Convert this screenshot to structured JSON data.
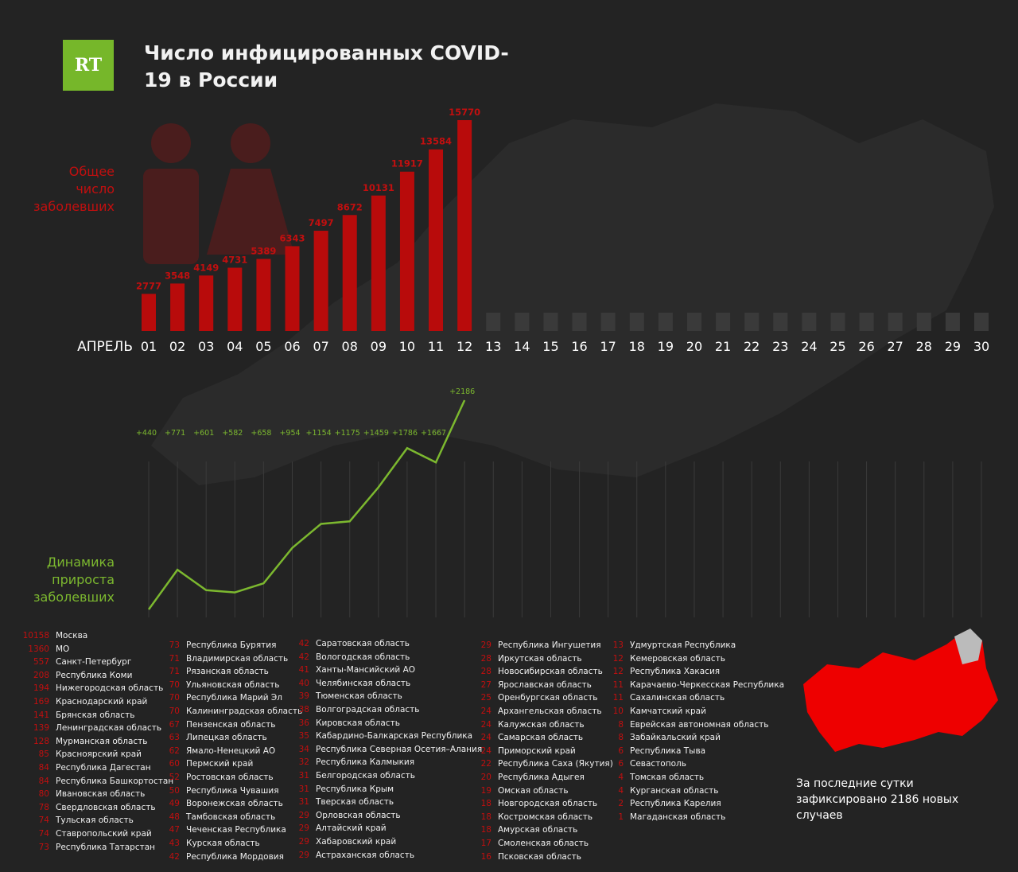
{
  "header": {
    "logo": "RT",
    "title": "Число инфицированных COVID-19 в России"
  },
  "chart_data": [
    {
      "type": "bar",
      "xlabel": "АПРЕЛЬ",
      "ylabel": "Общее число заболевших",
      "color": "#b80b0b",
      "placeholder_color": "#3a3a3a",
      "categories": [
        "01",
        "02",
        "03",
        "04",
        "05",
        "06",
        "07",
        "08",
        "09",
        "10",
        "11",
        "12",
        "13",
        "14",
        "15",
        "16",
        "17",
        "18",
        "19",
        "20",
        "21",
        "22",
        "23",
        "24",
        "25",
        "26",
        "27",
        "28",
        "29",
        "30"
      ],
      "values": [
        2777,
        3548,
        4149,
        4731,
        5389,
        6343,
        7497,
        8672,
        10131,
        11917,
        13584,
        15770,
        null,
        null,
        null,
        null,
        null,
        null,
        null,
        null,
        null,
        null,
        null,
        null,
        null,
        null,
        null,
        null,
        null,
        null
      ]
    },
    {
      "type": "line",
      "ylabel": "Динамика прироста заболевших",
      "color": "#7cb82f",
      "grid": true,
      "values": [
        440,
        771,
        601,
        582,
        658,
        954,
        1154,
        1175,
        1459,
        1786,
        1667,
        2186
      ],
      "value_labels": [
        "+440",
        "+771",
        "+601",
        "+582",
        "+658",
        "+954",
        "+1154",
        "+1175",
        "+1459",
        "+1786",
        "+1667",
        "+2186"
      ]
    }
  ],
  "regions": [
    [
      [
        "10158",
        "Москва"
      ],
      [
        "1360",
        "МО"
      ],
      [
        "557",
        "Санкт-Петербург"
      ],
      [
        "208",
        "Республика Коми"
      ],
      [
        "194",
        "Нижегородская область"
      ],
      [
        "169",
        "Краснодарский край"
      ],
      [
        "141",
        "Брянская область"
      ],
      [
        "139",
        "Ленинградская область"
      ],
      [
        "128",
        "Мурманская область"
      ],
      [
        "85",
        "Красноярский край"
      ],
      [
        "84",
        "Республика Дагестан"
      ],
      [
        "84",
        "Республика Башкортостан"
      ],
      [
        "80",
        "Ивановская область"
      ],
      [
        "78",
        "Свердловская область"
      ],
      [
        "74",
        "Тульская область"
      ],
      [
        "74",
        "Ставропольский край"
      ],
      [
        "73",
        "Республика Татарстан"
      ]
    ],
    [
      [
        "73",
        "Республика Бурятия"
      ],
      [
        "71",
        "Владимирская область"
      ],
      [
        "71",
        "Рязанская область"
      ],
      [
        "70",
        "Ульяновская область"
      ],
      [
        "70",
        "Республика Марий Эл"
      ],
      [
        "70",
        "Калининградская область"
      ],
      [
        "67",
        "Пензенская область"
      ],
      [
        "63",
        "Липецкая область"
      ],
      [
        "62",
        "Ямало-Ненецкий АО"
      ],
      [
        "60",
        "Пермский край"
      ],
      [
        "52",
        "Ростовская область"
      ],
      [
        "50",
        "Республика Чувашия"
      ],
      [
        "49",
        "Воронежская область"
      ],
      [
        "48",
        "Тамбовская область"
      ],
      [
        "47",
        "Чеченская Республика"
      ],
      [
        "43",
        "Курская область"
      ],
      [
        "42",
        "Республика Мордовия"
      ]
    ],
    [
      [
        "42",
        "Саратовская область"
      ],
      [
        "42",
        "Вологодская область"
      ],
      [
        "41",
        "Ханты-Мансийский АО"
      ],
      [
        "40",
        "Челябинская область"
      ],
      [
        "39",
        "Тюменская область"
      ],
      [
        "38",
        "Волгоградская область"
      ],
      [
        "36",
        "Кировская область"
      ],
      [
        "35",
        "Кабардино-Балкарская Республика"
      ],
      [
        "34",
        "Республика Северная Осетия–Алания"
      ],
      [
        "32",
        "Республика Калмыкия"
      ],
      [
        "31",
        "Белгородская область"
      ],
      [
        "31",
        "Республика Крым"
      ],
      [
        "31",
        "Тверская область"
      ],
      [
        "29",
        "Орловская область"
      ],
      [
        "29",
        "Алтайский край"
      ],
      [
        "29",
        "Хабаровский край"
      ],
      [
        "29",
        "Астраханская область"
      ]
    ],
    [
      [
        "29",
        "Республика Ингушетия"
      ],
      [
        "28",
        "Иркутская область"
      ],
      [
        "28",
        "Новосибирская область"
      ],
      [
        "27",
        "Ярославская область"
      ],
      [
        "25",
        "Оренбургская область"
      ],
      [
        "24",
        "Архангельская область"
      ],
      [
        "24",
        "Калужская область"
      ],
      [
        "24",
        "Самарская область"
      ],
      [
        "24",
        "Приморский край"
      ],
      [
        "22",
        "Республика Саха (Якутия)"
      ],
      [
        "20",
        "Республика Адыгея"
      ],
      [
        "19",
        "Омская область"
      ],
      [
        "18",
        "Новгородская область"
      ],
      [
        "18",
        "Костромская область"
      ],
      [
        "18",
        "Амурская область"
      ],
      [
        "17",
        "Смоленская область"
      ],
      [
        "16",
        "Псковская область"
      ]
    ],
    [
      [
        "13",
        "Удмуртская Республика"
      ],
      [
        "12",
        "Кемеровская область"
      ],
      [
        "12",
        "Республика Хакасия"
      ],
      [
        "11",
        "Карачаево-Черкесская Республика"
      ],
      [
        "11",
        "Сахалинская область"
      ],
      [
        "10",
        "Камчатский край"
      ],
      [
        "8",
        "Еврейская автономная область"
      ],
      [
        "8",
        "Забайкальский край"
      ],
      [
        "6",
        "Республика Тыва"
      ],
      [
        "6",
        "Севастополь"
      ],
      [
        "4",
        "Томская область"
      ],
      [
        "4",
        "Курганская область"
      ],
      [
        "2",
        "Республика Карелия"
      ],
      [
        "1",
        "Магаданская область"
      ]
    ]
  ],
  "footer": "За последние сутки зафиксировано 2186 новых случаев"
}
